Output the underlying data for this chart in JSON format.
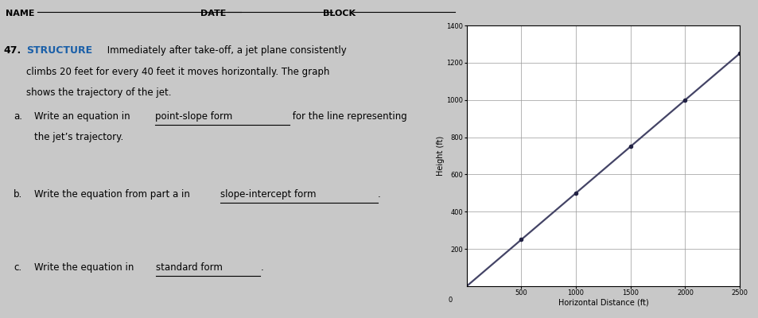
{
  "bg_color": "#c8c8c8",
  "header": {
    "name_label": "NAME",
    "date_label": "DATE",
    "block_label": "BLOCK"
  },
  "problem_number": "47.",
  "structure_word": "STRUCTURE",
  "structure_color": "#1a5fa8",
  "graph": {
    "xlim": [
      0,
      2500
    ],
    "ylim": [
      0,
      1400
    ],
    "xticks": [
      500,
      1000,
      1500,
      2000,
      2500
    ],
    "yticks": [
      200,
      400,
      600,
      800,
      1000,
      1200,
      1400
    ],
    "xlabel": "Horizontal Distance (ft)",
    "ylabel": "Height (ft)",
    "slope_rise": 20,
    "slope_run": 40,
    "line_color": "#444466",
    "line_width": 1.6,
    "dot_color": "#222244",
    "dot_x": [
      500,
      1000,
      1500,
      2000,
      2500
    ],
    "grid_color": "#999999",
    "tick_fontsize": 6,
    "axis_label_fontsize": 7
  }
}
